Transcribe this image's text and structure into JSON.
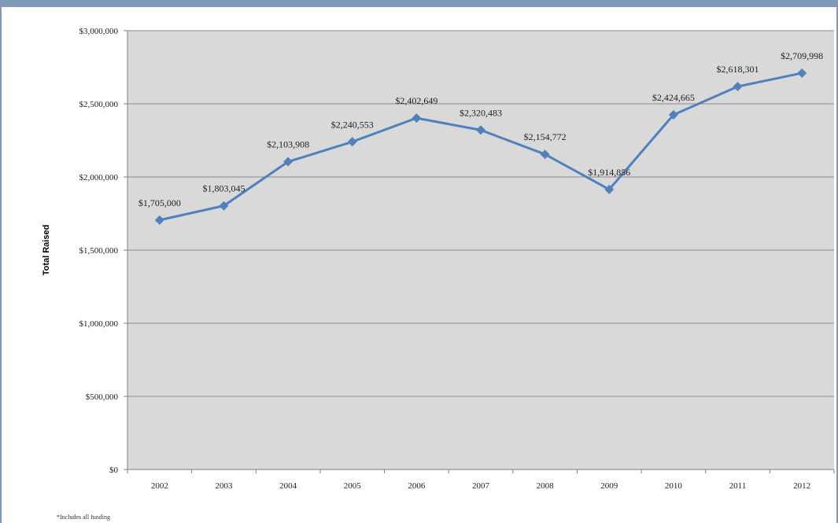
{
  "chart_data": {
    "type": "line",
    "title": "",
    "xlabel": "",
    "ylabel": "Total Raised",
    "categories": [
      "2002",
      "2003",
      "2004",
      "2005",
      "2006",
      "2007",
      "2008",
      "2009",
      "2010",
      "2011",
      "2012"
    ],
    "series": [
      {
        "values": [
          1705000,
          1803045,
          2103908,
          2240553,
          2402649,
          2320483,
          2154772,
          1914856,
          2424665,
          2618301,
          2709998
        ],
        "labels": [
          "$1,705,000",
          "$1,803,045",
          "$2,103,908",
          "$2,240,553",
          "$2,402,649",
          "$2,320,483",
          "$2,154,772",
          "$1,914,856",
          "$2,424,665",
          "$2,618,301",
          "$2,709,998"
        ],
        "color": "#4f81bd"
      }
    ],
    "ylim": [
      0,
      3000000
    ],
    "yticks": [
      0,
      500000,
      1000000,
      1500000,
      2000000,
      2500000,
      3000000
    ],
    "ytick_labels": [
      "$0",
      "$500,000",
      "$1,000,000",
      "$1,500,000",
      "$2,000,000",
      "$2,500,000",
      "$3,000,000"
    ],
    "grid": true,
    "legend": "none",
    "plot_background": "#d9d9d9",
    "footnote": "*Includes all funding"
  }
}
